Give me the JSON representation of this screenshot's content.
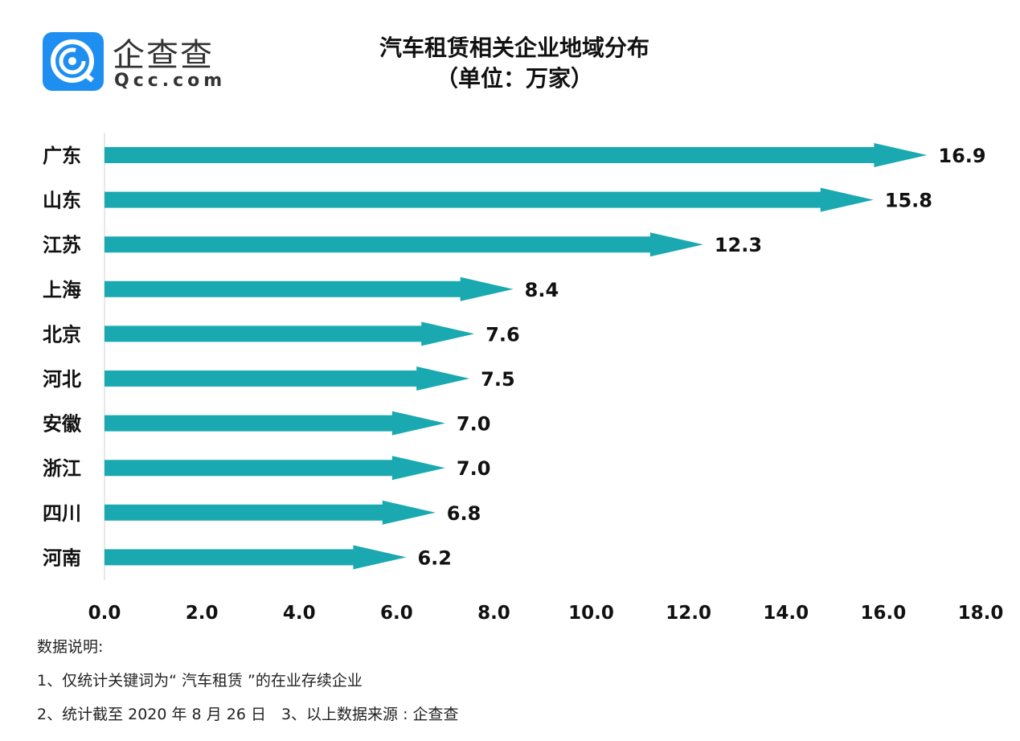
{
  "logo": {
    "cn": "企查查",
    "en": "Qcc.com",
    "color": "#1e8ff0"
  },
  "chart_data": {
    "type": "bar",
    "orientation": "horizontal",
    "title": "汽车租赁相关企业地域分布",
    "subtitle": "（单位：万家）",
    "categories": [
      "广东",
      "山东",
      "江苏",
      "上海",
      "北京",
      "河北",
      "安徽",
      "浙江",
      "四川",
      "河南"
    ],
    "values": [
      16.9,
      15.8,
      12.3,
      8.4,
      7.6,
      7.5,
      7.0,
      7.0,
      6.8,
      6.2
    ],
    "value_labels": [
      "16.9",
      "15.8",
      "12.3",
      "8.4",
      "7.6",
      "7.5",
      "7.0",
      "7.0",
      "6.8",
      "6.2"
    ],
    "xlim": [
      0,
      18
    ],
    "xticks": [
      "0.0",
      "2.0",
      "4.0",
      "6.0",
      "8.0",
      "10.0",
      "12.0",
      "14.0",
      "16.0",
      "18.0"
    ],
    "bar_shape": "arrow",
    "bar_color": "#1aa9b1",
    "grid": false
  },
  "notes": {
    "heading": "数据说明:",
    "line1": "1、仅统计关键词为“ 汽车租赁 ”的在业存续企业",
    "line2": "2、统计截至 2020 年 8 月 26 日　3、以上数据来源 : 企查查"
  }
}
